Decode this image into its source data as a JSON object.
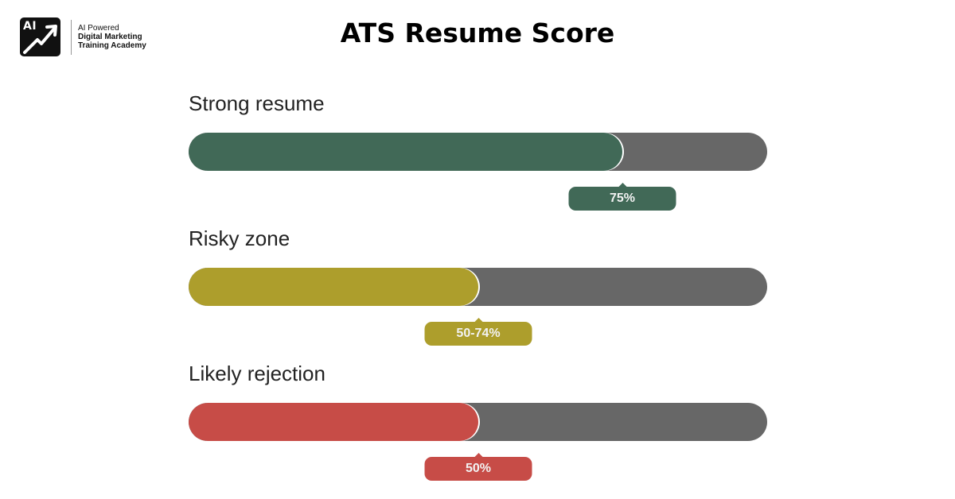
{
  "header": {
    "logo_mark": "AI",
    "logo_lines": [
      "AI Powered",
      "Digital Marketing",
      "Training Academy"
    ],
    "logo_icon": "arrow-up-right-icon"
  },
  "chart_data": {
    "type": "bar",
    "title": "ATS Resume Score",
    "orientation": "horizontal",
    "xlim": [
      0,
      100
    ],
    "grid": false,
    "categories": [
      "Strong resume",
      "Risky zone",
      "Likely rejection"
    ],
    "values": [
      75,
      50,
      50
    ],
    "data_labels": [
      "75%",
      "50-74%",
      "50%"
    ],
    "colors": [
      "#416957",
      "#ad9e2c",
      "#c74c47"
    ],
    "track_color": "#676767"
  }
}
